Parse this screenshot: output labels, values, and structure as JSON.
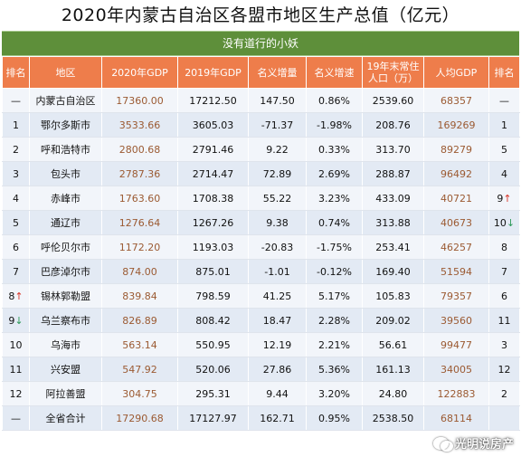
{
  "title": "2020年内蒙古自治区各盟市地区生产总值（亿元）",
  "banner": "没有道行的小妖",
  "headers": {
    "rank": "排名",
    "region": "地区",
    "gdp2020": "2020年GDP",
    "gdp2019": "2019年GDP",
    "nominal_increase": "名义增量",
    "nominal_growth": "名义增速",
    "population_line1": "19年末常住",
    "population_line2": "人口（万）",
    "per_capita": "人均GDP",
    "per_capita_rank": "排名"
  },
  "rows": [
    {
      "rank": "—",
      "rank_arrow": "",
      "region": "内蒙古自治区",
      "gdp2020": "17360.00",
      "gdp2019": "17212.50",
      "increase": "147.50",
      "growth": "0.86%",
      "population": "2539.60",
      "per_capita": "68357",
      "pc_rank": "—",
      "pc_arrow": ""
    },
    {
      "rank": "1",
      "rank_arrow": "",
      "region": "鄂尔多斯市",
      "gdp2020": "3533.66",
      "gdp2019": "3605.03",
      "increase": "-71.37",
      "growth": "-1.98%",
      "population": "208.76",
      "per_capita": "169269",
      "pc_rank": "1",
      "pc_arrow": ""
    },
    {
      "rank": "2",
      "rank_arrow": "",
      "region": "呼和浩特市",
      "gdp2020": "2800.68",
      "gdp2019": "2791.46",
      "increase": "9.22",
      "growth": "0.33%",
      "population": "313.70",
      "per_capita": "89279",
      "pc_rank": "5",
      "pc_arrow": ""
    },
    {
      "rank": "3",
      "rank_arrow": "",
      "region": "包头市",
      "gdp2020": "2787.36",
      "gdp2019": "2714.47",
      "increase": "72.89",
      "growth": "2.69%",
      "population": "288.87",
      "per_capita": "96492",
      "pc_rank": "4",
      "pc_arrow": ""
    },
    {
      "rank": "4",
      "rank_arrow": "",
      "region": "赤峰市",
      "gdp2020": "1763.60",
      "gdp2019": "1708.38",
      "increase": "55.22",
      "growth": "3.23%",
      "population": "433.09",
      "per_capita": "40721",
      "pc_rank": "9",
      "pc_arrow": "↑"
    },
    {
      "rank": "5",
      "rank_arrow": "",
      "region": "通辽市",
      "gdp2020": "1276.64",
      "gdp2019": "1267.26",
      "increase": "9.38",
      "growth": "0.74%",
      "population": "313.88",
      "per_capita": "40673",
      "pc_rank": "10",
      "pc_arrow": "↓"
    },
    {
      "rank": "6",
      "rank_arrow": "",
      "region": "呼伦贝尔市",
      "gdp2020": "1172.20",
      "gdp2019": "1193.03",
      "increase": "-20.83",
      "growth": "-1.75%",
      "population": "253.41",
      "per_capita": "46257",
      "pc_rank": "8",
      "pc_arrow": ""
    },
    {
      "rank": "7",
      "rank_arrow": "",
      "region": "巴彦淖尔市",
      "gdp2020": "874.00",
      "gdp2019": "875.01",
      "increase": "-1.01",
      "growth": "-0.12%",
      "population": "169.40",
      "per_capita": "51594",
      "pc_rank": "7",
      "pc_arrow": ""
    },
    {
      "rank": "8",
      "rank_arrow": "↑",
      "region": "锡林郭勒盟",
      "gdp2020": "839.84",
      "gdp2019": "798.59",
      "increase": "41.25",
      "growth": "5.17%",
      "population": "105.83",
      "per_capita": "79357",
      "pc_rank": "6",
      "pc_arrow": ""
    },
    {
      "rank": "9",
      "rank_arrow": "↓",
      "region": "乌兰察布市",
      "gdp2020": "826.89",
      "gdp2019": "808.42",
      "increase": "18.47",
      "growth": "2.28%",
      "population": "209.02",
      "per_capita": "39560",
      "pc_rank": "11",
      "pc_arrow": ""
    },
    {
      "rank": "10",
      "rank_arrow": "",
      "region": "乌海市",
      "gdp2020": "563.14",
      "gdp2019": "550.95",
      "increase": "12.19",
      "growth": "2.21%",
      "population": "56.61",
      "per_capita": "99477",
      "pc_rank": "3",
      "pc_arrow": ""
    },
    {
      "rank": "11",
      "rank_arrow": "",
      "region": "兴安盟",
      "gdp2020": "547.92",
      "gdp2019": "520.06",
      "increase": "27.86",
      "growth": "5.36%",
      "population": "161.13",
      "per_capita": "34005",
      "pc_rank": "12",
      "pc_arrow": ""
    },
    {
      "rank": "12",
      "rank_arrow": "",
      "region": "阿拉善盟",
      "gdp2020": "304.75",
      "gdp2019": "295.31",
      "increase": "9.44",
      "growth": "3.20%",
      "population": "24.80",
      "per_capita": "122883",
      "pc_rank": "2",
      "pc_arrow": ""
    },
    {
      "rank": "—",
      "rank_arrow": "",
      "region": "全省合计",
      "gdp2020": "17290.68",
      "gdp2019": "17127.97",
      "increase": "162.71",
      "growth": "0.95%",
      "population": "2538.50",
      "per_capita": "68114",
      "pc_rank": "",
      "pc_arrow": ""
    }
  ],
  "watermark": "光明说房产",
  "colors": {
    "header_bg": "#ee7d4b",
    "banner_bg": "#5e8f3a",
    "up_arrow": "#d8372b",
    "down_arrow": "#2e9a5a"
  }
}
